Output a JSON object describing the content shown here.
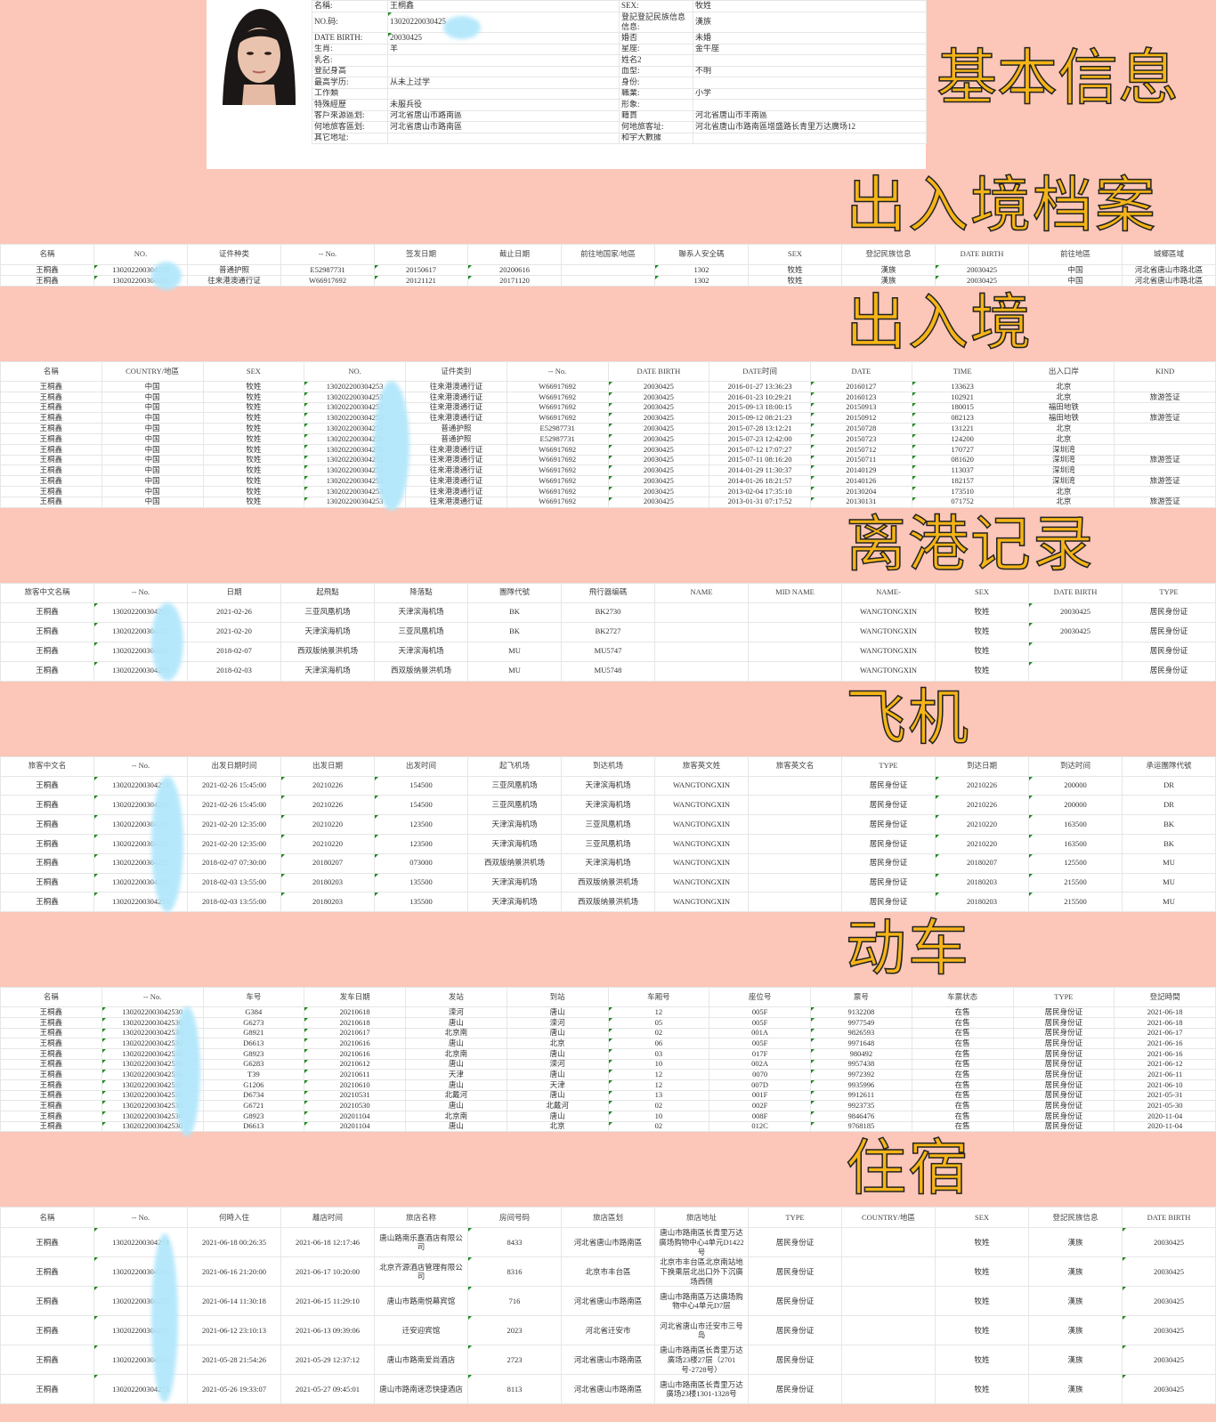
{
  "basic": {
    "rows": [
      [
        "名稱:",
        "王桐鑫",
        "SEX:",
        "牧姓"
      ],
      [
        "NO.码:",
        "13020220030425",
        "登記登記民族信息信息:",
        "漢族"
      ],
      [
        "DATE BIRTH:",
        "20030425",
        "婚否",
        "未婚"
      ],
      [
        "生肖:",
        "羊",
        "星座:",
        "金牛座"
      ],
      [
        "乳名:",
        "",
        "姓名2",
        ""
      ],
      [
        "登記身高",
        "",
        "血型:",
        "不明"
      ],
      [
        "最高学历:",
        "从未上过学",
        "身份:",
        ""
      ],
      [
        "工作類",
        "",
        "職業:",
        "小学"
      ],
      [
        "特殊經歷",
        "未服兵役",
        "形象:",
        ""
      ],
      [
        "客戶來源區划:",
        "河北省唐山市路南區",
        "籍貫",
        "河北省唐山市丰南區"
      ],
      [
        "何地旅客區划:",
        "河北省唐山市路南區",
        "何地旅客址:",
        "河北省唐山市路南區增盛路长青里万达廣场12"
      ],
      [
        "其它地址:",
        "",
        "和宇大數據",
        ""
      ]
    ]
  },
  "sections": [
    {
      "headers": [
        "名稱",
        "NO.",
        "证件种类",
        "-- No.",
        "签发日期",
        "截止日期",
        "前往地国家/地區",
        "聯系人安全碼",
        "SEX",
        "登記民族信息",
        "DATE BIRTH",
        "前往地區",
        "城鄉區域"
      ],
      "rows": [
        [
          "王桐鑫",
          "130202200304253",
          "普通护照",
          "E52987731",
          "20150617",
          "20200616",
          "",
          "1302",
          "牧姓",
          "漢族",
          "20030425",
          "中国",
          "河北省唐山市路北區"
        ],
        [
          "王桐鑫",
          "130202200304253",
          "往来港澳通行证",
          "W66917692",
          "20121121",
          "20171120",
          "",
          "1302",
          "牧姓",
          "漢族",
          "20030425",
          "中国",
          "河北省唐山市路北區"
        ]
      ]
    },
    {
      "headers": [
        "名稱",
        "COUNTRY/地區",
        "SEX",
        "NO.",
        "证件类别",
        "-- No.",
        "DATE BIRTH",
        "DATE时间",
        "DATE",
        "TIME",
        "出入口岸",
        "KIND"
      ],
      "rows": [
        [
          "王桐鑫",
          "中国",
          "牧姓",
          "130202200304253",
          "往来港澳通行证",
          "W66917692",
          "20030425",
          "2016-01-27 13:36:23",
          "20160127",
          "133623",
          "北京",
          ""
        ],
        [
          "王桐鑫",
          "中国",
          "牧姓",
          "130202200304253",
          "往来港澳通行证",
          "W66917692",
          "20030425",
          "2016-01-23 10:29:21",
          "20160123",
          "102921",
          "北京",
          "旅游签证"
        ],
        [
          "王桐鑫",
          "中国",
          "牧姓",
          "130202200304253",
          "往来港澳通行证",
          "W66917692",
          "20030425",
          "2015-09-13 18:00:15",
          "20150913",
          "180015",
          "福田地铁",
          ""
        ],
        [
          "王桐鑫",
          "中国",
          "牧姓",
          "130202200304253",
          "往来港澳通行证",
          "W66917692",
          "20030425",
          "2015-09-12 08:21:23",
          "20150912",
          "082123",
          "福田地铁",
          "旅游签证"
        ],
        [
          "王桐鑫",
          "中国",
          "牧姓",
          "130202200304253",
          "普通护照",
          "E52987731",
          "20030425",
          "2015-07-28 13:12:21",
          "20150728",
          "131221",
          "北京",
          ""
        ],
        [
          "王桐鑫",
          "中国",
          "牧姓",
          "130202200304253",
          "普通护照",
          "E52987731",
          "20030425",
          "2015-07-23 12:42:00",
          "20150723",
          "124200",
          "北京",
          ""
        ],
        [
          "王桐鑫",
          "中国",
          "牧姓",
          "130202200304253",
          "往来港澳通行证",
          "W66917692",
          "20030425",
          "2015-07-12 17:07:27",
          "20150712",
          "170727",
          "深圳湾",
          ""
        ],
        [
          "王桐鑫",
          "中国",
          "牧姓",
          "130202200304253",
          "往来港澳通行证",
          "W66917692",
          "20030425",
          "2015-07-11 08:16:20",
          "20150711",
          "081620",
          "深圳湾",
          "旅游签证"
        ],
        [
          "王桐鑫",
          "中国",
          "牧姓",
          "130202200304253",
          "往来港澳通行证",
          "W66917692",
          "20030425",
          "2014-01-29 11:30:37",
          "20140129",
          "113037",
          "深圳湾",
          ""
        ],
        [
          "王桐鑫",
          "中国",
          "牧姓",
          "130202200304253",
          "往来港澳通行证",
          "W66917692",
          "20030425",
          "2014-01-26 18:21:57",
          "20140126",
          "182157",
          "深圳湾",
          "旅游签证"
        ],
        [
          "王桐鑫",
          "中国",
          "牧姓",
          "130202200304253",
          "往来港澳通行证",
          "W66917692",
          "20030425",
          "2013-02-04 17:35:10",
          "20130204",
          "173510",
          "北京",
          ""
        ],
        [
          "王桐鑫",
          "中国",
          "牧姓",
          "130202200304253",
          "往来港澳通行证",
          "W66917692",
          "20030425",
          "2013-01-31 07:17:52",
          "20130131",
          "071752",
          "北京",
          "旅游签证"
        ]
      ]
    },
    {
      "headers": [
        "旅客中文名稱",
        "-- No.",
        "日期",
        "起飛點",
        "降落點",
        "團隊代號",
        "飛行器编碼",
        "NAME",
        "MID NAME",
        "NAME-",
        "SEX",
        "DATE BIRTH",
        "TYPE"
      ],
      "rows": [
        [
          "王桐鑫",
          "130202200304253",
          "2021-02-26",
          "三亚凤凰机场",
          "天津滨海机场",
          "BK",
          "BK2730",
          "",
          "",
          "WANGTONGXIN",
          "牧姓",
          "20030425",
          "居民身份证"
        ],
        [
          "王桐鑫",
          "130202200304253",
          "2021-02-20",
          "天津滨海机场",
          "三亚凤凰机场",
          "BK",
          "BK2727",
          "",
          "",
          "WANGTONGXIN",
          "牧姓",
          "20030425",
          "居民身份证"
        ],
        [
          "王桐鑫",
          "130202200304253",
          "2018-02-07",
          "西双版纳景洪机场",
          "天津滨海机场",
          "MU",
          "MU5747",
          "",
          "",
          "WANGTONGXIN",
          "牧姓",
          "",
          "居民身份证"
        ],
        [
          "王桐鑫",
          "130202200304253",
          "2018-02-03",
          "天津滨海机场",
          "西双版纳景洪机场",
          "MU",
          "MU5748",
          "",
          "",
          "WANGTONGXIN",
          "牧姓",
          "",
          "居民身份证"
        ]
      ]
    },
    {
      "headers": [
        "旅客中文名",
        "-- No.",
        "出发日期时间",
        "出发日期",
        "出发时间",
        "起飞机场",
        "到达机场",
        "旅客英文姓",
        "旅客英文名",
        "TYPE",
        "到达日期",
        "到达时间",
        "承运團隊代號"
      ],
      "rows": [
        [
          "王桐鑫",
          "130202200304253",
          "2021-02-26 15:45:00",
          "20210226",
          "154500",
          "三亚凤凰机场",
          "天津滨海机场",
          "WANGTONGXIN",
          "",
          "居民身份证",
          "20210226",
          "200000",
          "DR"
        ],
        [
          "王桐鑫",
          "130202200304253",
          "2021-02-26 15:45:00",
          "20210226",
          "154500",
          "三亚凤凰机场",
          "天津滨海机场",
          "WANGTONGXIN",
          "",
          "居民身份证",
          "20210226",
          "200000",
          "DR"
        ],
        [
          "王桐鑫",
          "130202200304253",
          "2021-02-20 12:35:00",
          "20210220",
          "123500",
          "天津滨海机场",
          "三亚凤凰机场",
          "WANGTONGXIN",
          "",
          "居民身份证",
          "20210220",
          "163500",
          "BK"
        ],
        [
          "王桐鑫",
          "130202200304253",
          "2021-02-20 12:35:00",
          "20210220",
          "123500",
          "天津滨海机场",
          "三亚凤凰机场",
          "WANGTONGXIN",
          "",
          "居民身份证",
          "20210220",
          "163500",
          "BK"
        ],
        [
          "王桐鑫",
          "130202200304253",
          "2018-02-07 07:30:00",
          "20180207",
          "073000",
          "西双版纳景洪机场",
          "天津滨海机场",
          "WANGTONGXIN",
          "",
          "居民身份证",
          "20180207",
          "125500",
          "MU"
        ],
        [
          "王桐鑫",
          "130202200304253",
          "2018-02-03 13:55:00",
          "20180203",
          "135500",
          "天津滨海机场",
          "西双版纳景洪机场",
          "WANGTONGXIN",
          "",
          "居民身份证",
          "20180203",
          "215500",
          "MU"
        ],
        [
          "王桐鑫",
          "130202200304253",
          "2018-02-03 13:55:00",
          "20180203",
          "135500",
          "天津滨海机场",
          "西双版纳景洪机场",
          "WANGTONGXIN",
          "",
          "居民身份证",
          "20180203",
          "215500",
          "MU"
        ]
      ]
    },
    {
      "headers": [
        "名稱",
        "-- No.",
        "车号",
        "发车日期",
        "发站",
        "到站",
        "车厢号",
        "座位号",
        "票号",
        "车票状态",
        "TYPE",
        "登記時間"
      ],
      "rows": [
        [
          "王桐鑫",
          "1302022003042530",
          "G384",
          "20210618",
          "滦河",
          "唐山",
          "12",
          "005F",
          "9132208",
          "在售",
          "居民身份证",
          "2021-06-18"
        ],
        [
          "王桐鑫",
          "1302022003042530",
          "G6273",
          "20210618",
          "唐山",
          "滦河",
          "05",
          "005F",
          "9977549",
          "在售",
          "居民身份证",
          "2021-06-18"
        ],
        [
          "王桐鑫",
          "1302022003042530",
          "G8921",
          "20210617",
          "北京南",
          "唐山",
          "02",
          "001A",
          "9826593",
          "在售",
          "居民身份证",
          "2021-06-17"
        ],
        [
          "王桐鑫",
          "1302022003042530",
          "D6613",
          "20210616",
          "唐山",
          "北京",
          "06",
          "005F",
          "9971648",
          "在售",
          "居民身份证",
          "2021-06-16"
        ],
        [
          "王桐鑫",
          "1302022003042530",
          "G8923",
          "20210616",
          "北京南",
          "唐山",
          "03",
          "017F",
          "980492",
          "在售",
          "居民身份证",
          "2021-06-16"
        ],
        [
          "王桐鑫",
          "1302022003042530",
          "G6283",
          "20210612",
          "唐山",
          "滦河",
          "10",
          "002A",
          "9957438",
          "在售",
          "居民身份证",
          "2021-06-12"
        ],
        [
          "王桐鑫",
          "1302022003042530",
          "T39",
          "20210611",
          "天津",
          "唐山",
          "12",
          "0070",
          "9972392",
          "在售",
          "居民身份证",
          "2021-06-11"
        ],
        [
          "王桐鑫",
          "1302022003042530",
          "G1206",
          "20210610",
          "唐山",
          "天津",
          "12",
          "007D",
          "9935996",
          "在售",
          "居民身份证",
          "2021-06-10"
        ],
        [
          "王桐鑫",
          "1302022003042530",
          "D6734",
          "20210531",
          "北戴河",
          "唐山",
          "13",
          "001F",
          "9912611",
          "在售",
          "居民身份证",
          "2021-05-31"
        ],
        [
          "王桐鑫",
          "1302022003042530",
          "G6721",
          "20210530",
          "唐山",
          "北戴河",
          "02",
          "002F",
          "9923735",
          "在售",
          "居民身份证",
          "2021-05-30"
        ],
        [
          "王桐鑫",
          "1302022003042530",
          "G8923",
          "20201104",
          "北京南",
          "唐山",
          "10",
          "008F",
          "9846476",
          "在售",
          "居民身份证",
          "2020-11-04"
        ],
        [
          "王桐鑫",
          "1302022003042530",
          "D6613",
          "20201104",
          "唐山",
          "北京",
          "02",
          "012C",
          "9768185",
          "在售",
          "居民身份证",
          "2020-11-04"
        ]
      ]
    },
    {
      "headers": [
        "名稱",
        "-- No.",
        "何時入住",
        "離店时间",
        "旅店名称",
        "房间号码",
        "旅店區划",
        "旅店地址",
        "TYPE",
        "COUNTRY/地區",
        "SEX",
        "登記民族信息",
        "DATE BIRTH"
      ],
      "rows": [
        [
          "王桐鑫",
          "130202200304253",
          "2021-06-18 00:26:35",
          "2021-06-18 12:17:46",
          "唐山路南乐嘉酒店有限公司",
          "8433",
          "河北省唐山市路南區",
          "唐山市路南區长青里万达廣场购物中心4单元D1422号",
          "居民身份证",
          "",
          "牧姓",
          "漢族",
          "20030425"
        ],
        [
          "王桐鑫",
          "130202200304253",
          "2021-06-16 21:20:00",
          "2021-06-17 10:20:00",
          "北京齐源酒店管理有限公司",
          "8316",
          "北京市丰台區",
          "北京市丰台區北京南站地下换乘层北出口外下沉廣场西侧",
          "居民身份证",
          "",
          "牧姓",
          "漢族",
          "20030425"
        ],
        [
          "王桐鑫",
          "130202200304253",
          "2021-06-14 11:30:18",
          "2021-06-15 11:29:10",
          "唐山市路南悦幕宾馆",
          "716",
          "河北省唐山市路南區",
          "唐山市路南區万达廣场购物中心4单元D7层",
          "居民身份证",
          "",
          "牧姓",
          "漢族",
          "20030425"
        ],
        [
          "王桐鑫",
          "130202200304253",
          "2021-06-12 23:10:13",
          "2021-06-13 09:39:06",
          "迁安迎宾馆",
          "2023",
          "河北省迁安市",
          "河北省唐山市迁安市三号岛",
          "居民身份证",
          "",
          "牧姓",
          "漢族",
          "20030425"
        ],
        [
          "王桐鑫",
          "130202200304253",
          "2021-05-28 21:54:26",
          "2021-05-29 12:37:12",
          "唐山市路南爱尚酒店",
          "2723",
          "河北省唐山市路南區",
          "唐山市路南區长青里万达廣场23楼27层（2701号-2728号）",
          "居民身份证",
          "",
          "牧姓",
          "漢族",
          "20030425"
        ],
        [
          "王桐鑫",
          "130202200304253",
          "2021-05-26 19:33:07",
          "2021-05-27 09:45:01",
          "唐山市路南速恋快捷酒店",
          "8113",
          "河北省唐山市路南區",
          "唐山市路南區长青里万达廣场23楼1301-1328号",
          "居民身份证",
          "",
          "牧姓",
          "漢族",
          "20030425"
        ]
      ]
    }
  ],
  "overlays": [
    {
      "text": "基本信息"
    },
    {
      "text": "出入境档案"
    },
    {
      "text": "出入境"
    },
    {
      "text": "离港记录"
    },
    {
      "text": "飞机"
    },
    {
      "text": "动车"
    },
    {
      "text": "住宿"
    }
  ],
  "colors": {
    "background": "#fcc6b8",
    "overlay_text": "#f5b417",
    "redaction": "#b3e7fb",
    "cell_marker": "#1a8a1a"
  }
}
